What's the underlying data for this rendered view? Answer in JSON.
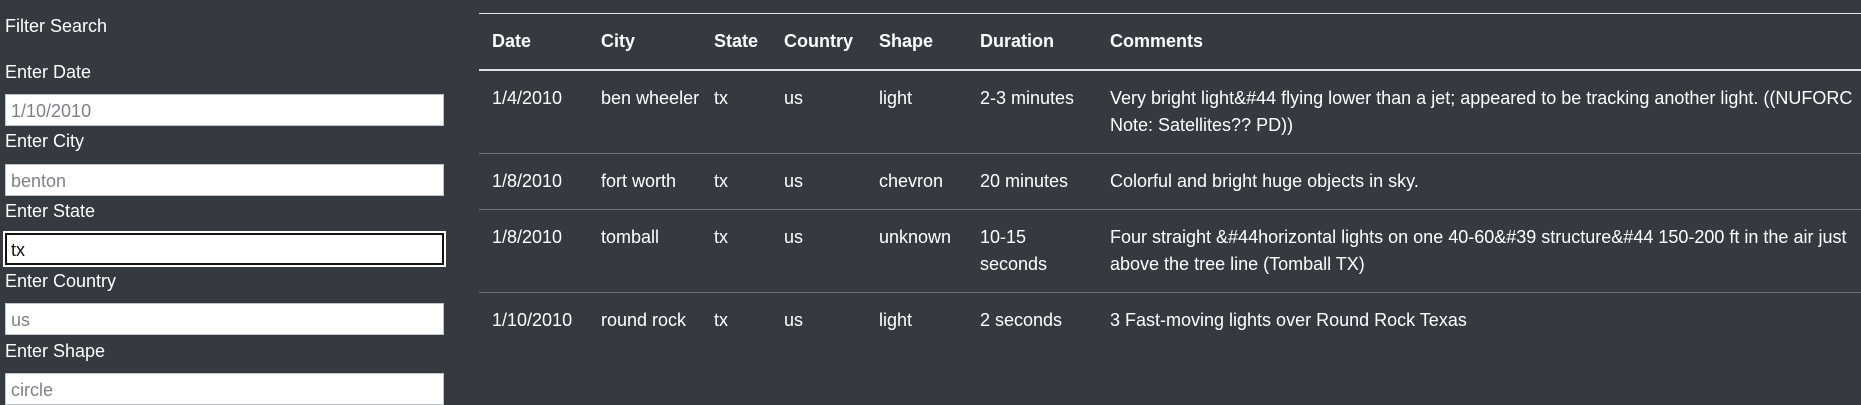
{
  "sidebar": {
    "title": "Filter Search",
    "fields": [
      {
        "label": "Enter Date",
        "placeholder": "1/10/2010",
        "value": ""
      },
      {
        "label": "Enter City",
        "placeholder": "benton",
        "value": ""
      },
      {
        "label": "Enter State",
        "placeholder": "",
        "value": "tx"
      },
      {
        "label": "Enter Country",
        "placeholder": "us",
        "value": ""
      },
      {
        "label": "Enter Shape",
        "placeholder": "circle",
        "value": ""
      }
    ]
  },
  "table": {
    "headers": [
      "Date",
      "City",
      "State",
      "Country",
      "Shape",
      "Duration",
      "Comments"
    ],
    "rows": [
      [
        "1/4/2010",
        "ben wheeler",
        "tx",
        "us",
        "light",
        "2-3 minutes",
        "Very bright light&#44 flying lower than a jet; appeared to be tracking another light. ((NUFORC Note: Satellites?? PD))"
      ],
      [
        "1/8/2010",
        "fort worth",
        "tx",
        "us",
        "chevron",
        "20 minutes",
        "Colorful and bright huge objects in sky."
      ],
      [
        "1/8/2010",
        "tomball",
        "tx",
        "us",
        "unknown",
        "10-15 seconds",
        "Four straight &#44horizontal lights on one 40-60&#39 structure&#44 150-200 ft in the air just above the tree line (Tomball TX)"
      ],
      [
        "1/10/2010",
        "round rock",
        "tx",
        "us",
        "light",
        "2 seconds",
        "3 Fast-moving lights over Round Rock Texas"
      ]
    ]
  }
}
